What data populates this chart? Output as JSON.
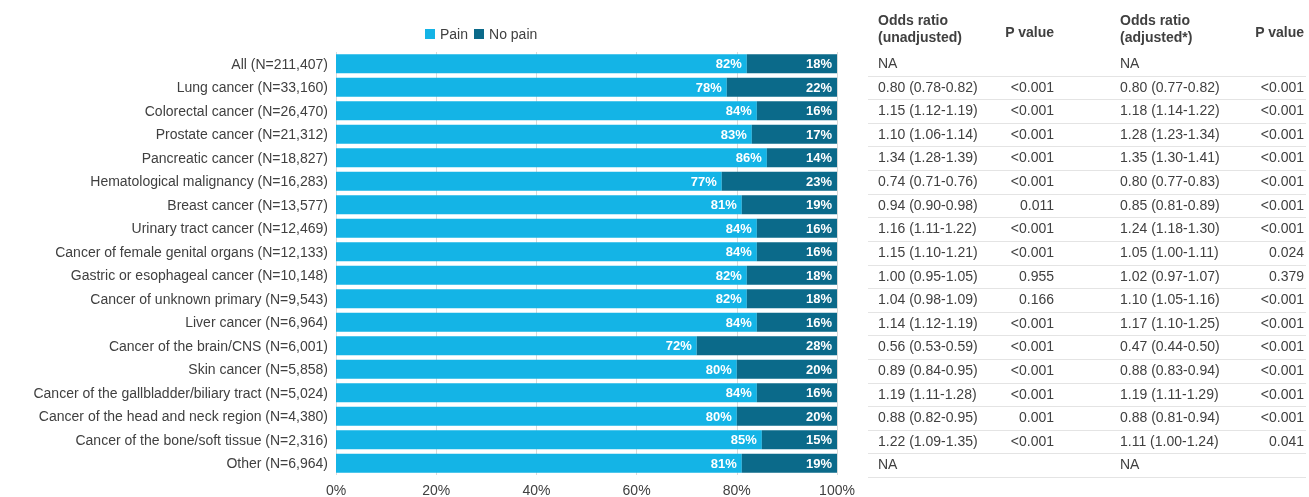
{
  "chart_data": [
    {
      "type": "bar",
      "orientation": "horizontal",
      "stacked": true,
      "categories": [
        "All (N=211,407)",
        "Lung cancer (N=33,160)",
        "Colorectal cancer (N=26,470)",
        "Prostate cancer (N=21,312)",
        "Pancreatic cancer (N=18,827)",
        "Hematological malignancy (N=16,283)",
        "Breast cancer (N=13,577)",
        "Urinary tract cancer (N=12,469)",
        "Cancer of female genital organs (N=12,133)",
        "Gastric or esophageal cancer (N=10,148)",
        "Cancer of unknown primary (N=9,543)",
        "Liver cancer (N=6,964)",
        "Cancer of the brain/CNS (N=6,001)",
        "Skin cancer (N=5,858)",
        "Cancer of the gallbladder/biliary tract (N=5,024)",
        "Cancer of the head and neck region (N=4,380)",
        "Cancer of the bone/soft tissue (N=2,316)",
        "Other (N=6,964)"
      ],
      "series": [
        {
          "name": "Pain",
          "color": "#14b4e6",
          "values": [
            82,
            78,
            84,
            83,
            86,
            77,
            81,
            84,
            84,
            82,
            82,
            84,
            72,
            80,
            84,
            80,
            85,
            81
          ],
          "value_labels": [
            "82%",
            "78%",
            "84%",
            "83%",
            "86%",
            "77%",
            "81%",
            "84%",
            "84%",
            "82%",
            "82%",
            "84%",
            "72%",
            "80%",
            "84%",
            "80%",
            "85%",
            "81%"
          ]
        },
        {
          "name": "No pain",
          "color": "#0b6a8a",
          "values": [
            18,
            22,
            16,
            17,
            14,
            23,
            19,
            16,
            16,
            18,
            18,
            16,
            28,
            20,
            16,
            20,
            15,
            19
          ],
          "value_labels": [
            "18%",
            "22%",
            "16%",
            "17%",
            "14%",
            "23%",
            "19%",
            "16%",
            "16%",
            "18%",
            "18%",
            "16%",
            "28%",
            "20%",
            "16%",
            "20%",
            "15%",
            "19%"
          ]
        }
      ],
      "xlim": [
        0,
        100
      ],
      "xticks": [
        {
          "value": 0,
          "label": "0%"
        },
        {
          "value": 20,
          "label": "20%"
        },
        {
          "value": 40,
          "label": "40%"
        },
        {
          "value": 60,
          "label": "60%"
        },
        {
          "value": 80,
          "label": "80%"
        },
        {
          "value": 100,
          "label": "100%"
        }
      ],
      "grid": "x",
      "legend": "top"
    },
    {
      "type": "other",
      "annotations": [
        "Odds ratio (unadjusted)",
        "P value",
        "Odds ratio (adjusted*)",
        "P value",
        "NA",
        null,
        "NA",
        null,
        "0.80 (0.78-0.82)",
        "<0.001",
        "0.80 (0.77-0.82)",
        "<0.001",
        "1.15 (1.12-1.19)",
        "<0.001",
        "1.18 (1.14-1.22)",
        "<0.001",
        "1.10 (1.06-1.14)",
        "<0.001",
        "1.28 (1.23-1.34)",
        "<0.001",
        "1.34 (1.28-1.39)",
        "<0.001",
        "1.35 (1.30-1.41)",
        "<0.001",
        "0.74 (0.71-0.76)",
        "<0.001",
        "0.80 (0.77-0.83)",
        "<0.001",
        "0.94 (0.90-0.98)",
        "0.011",
        "0.85 (0.81-0.89)",
        "<0.001",
        "1.16 (1.11-1.22)",
        "<0.001",
        "1.24 (1.18-1.30)",
        "<0.001",
        "1.15 (1.10-1.21)",
        "<0.001",
        "1.05 (1.00-1.11)",
        "0.024",
        "1.00 (0.95-1.05)",
        "0.955",
        "1.02 (0.97-1.07)",
        "0.379",
        "1.04 (0.98-1.09)",
        "0.166",
        "1.10 (1.05-1.16)",
        "<0.001",
        "1.14 (1.12-1.19)",
        "<0.001",
        "1.17 (1.10-1.25)",
        "<0.001",
        "0.56 (0.53-0.59)",
        "<0.001",
        "0.47 (0.44-0.50)",
        "<0.001",
        "0.89 (0.84-0.95)",
        "<0.001",
        "0.88 (0.83-0.94)",
        "<0.001",
        "1.19 (1.11-1.28)",
        "<0.001",
        "1.19 (1.11-1.29)",
        "<0.001",
        "0.88 (0.82-0.95)",
        "0.001",
        "0.88 (0.81-0.94)",
        "<0.001",
        "1.22 (1.09-1.35)",
        "<0.001",
        "1.11 (1.00-1.24)",
        "0.041",
        "NA",
        null,
        "NA",
        null
      ]
    }
  ]
}
